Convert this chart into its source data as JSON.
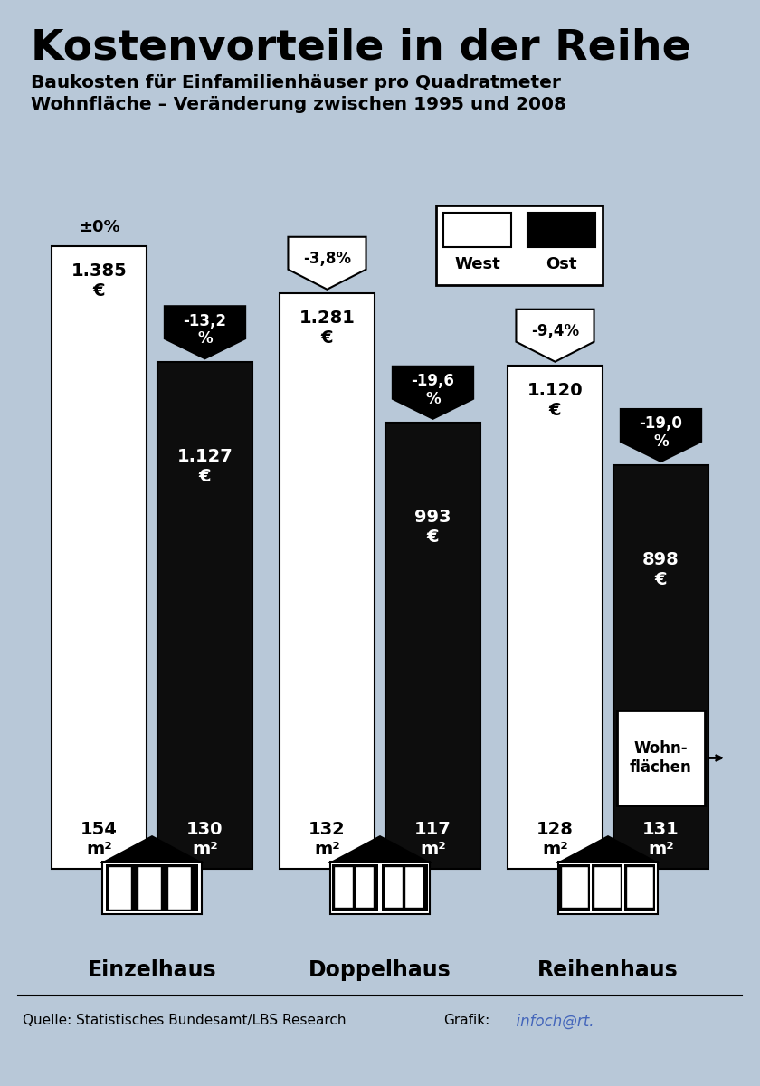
{
  "title": "Kostenvorteile in der Reihe",
  "subtitle1": "Baukosten für Einfamilienhäuser pro Quadratmeter",
  "subtitle2": "Wohnfläche – Veränderung zwischen 1995 und 2008",
  "background_color": "#b8c8d8",
  "bar_data": [
    {
      "group": "Einzelhaus",
      "west_val": 1385,
      "ost_val": 1127,
      "west_pct": "±0%",
      "ost_pct": "-13,2\n%",
      "west_m2": "154",
      "ost_m2": "130"
    },
    {
      "group": "Doppelhaus",
      "west_val": 1281,
      "ost_val": 993,
      "west_pct": "-3,8%",
      "ost_pct": "-19,6\n%",
      "west_m2": "132",
      "ost_m2": "117"
    },
    {
      "group": "Reihenhaus",
      "west_val": 1120,
      "ost_val": 898,
      "west_pct": "-9,4%",
      "ost_pct": "-19,0\n%",
      "west_m2": "128",
      "ost_m2": "131"
    }
  ],
  "west_color": "#ffffff",
  "ost_color": "#0d0d0d",
  "max_val": 1500,
  "source_text": "Quelle: Statistisches Bundesamt/LBS Research",
  "grafik_label": "Grafik:",
  "grafik_value": "  infoch@rt.",
  "grafik_color": "#4466bb",
  "legend_west": "West",
  "legend_ost": "Ost",
  "wohnflaechen_label": "Wohn-\nflächen"
}
